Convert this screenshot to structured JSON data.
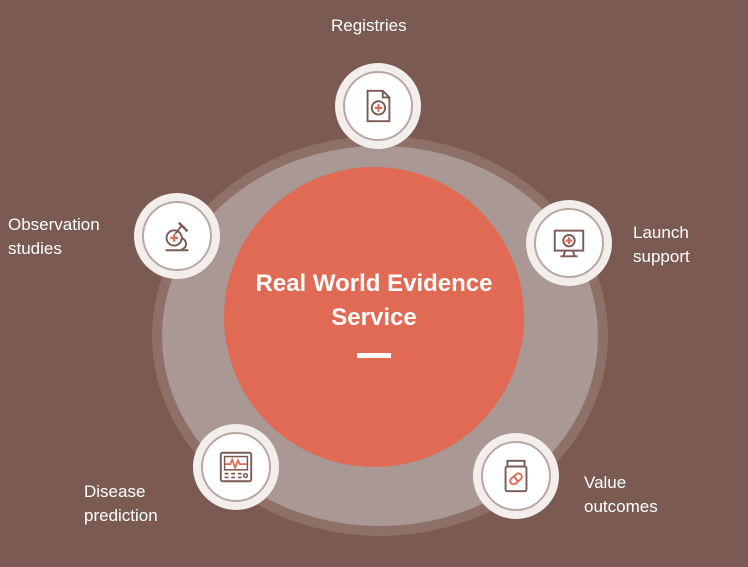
{
  "center": {
    "title_line1": "Real World Evidence",
    "title_line2": "Service"
  },
  "nodes": [
    {
      "id": "registries",
      "icon": "document-medical-icon",
      "label_lines": [
        "Registries"
      ]
    },
    {
      "id": "launch-support",
      "icon": "monitor-medical-icon",
      "label_lines": [
        "Launch",
        "support"
      ]
    },
    {
      "id": "value-outcomes",
      "icon": "pill-bottle-icon",
      "label_lines": [
        "Value",
        "outcomes"
      ]
    },
    {
      "id": "disease-prediction",
      "icon": "ecg-monitor-icon",
      "label_lines": [
        "Disease",
        "prediction"
      ]
    },
    {
      "id": "observation-studies",
      "icon": "microscope-icon",
      "label_lines": [
        "Observation",
        "studies"
      ]
    }
  ],
  "colors": {
    "background": "#7a5a52",
    "ring": "#a99893",
    "center": "#e06a53",
    "icon_stroke": "#7a5a52"
  }
}
